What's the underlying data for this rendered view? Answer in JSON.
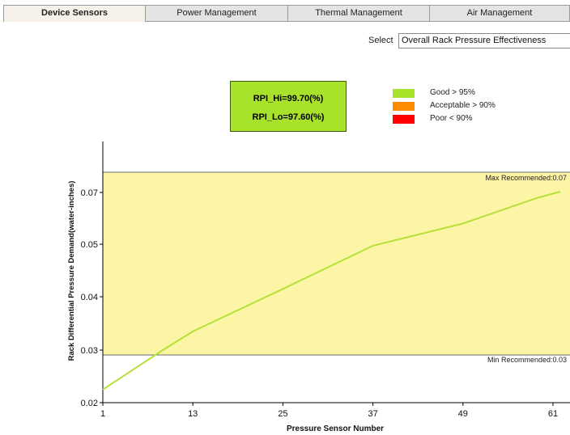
{
  "tabs": [
    {
      "label": "Device Sensors",
      "active": true
    },
    {
      "label": "Power Management",
      "active": false
    },
    {
      "label": "Thermal Management",
      "active": false
    },
    {
      "label": "Air Management",
      "active": false
    }
  ],
  "selector": {
    "label": "Select",
    "value": "Overall Rack Pressure Effectiveness"
  },
  "rpi": {
    "hi": "RPI_Hi=99.70(%)",
    "lo": "RPI_Lo=97.60(%)",
    "color": "#a8e22b"
  },
  "legend": [
    {
      "label": "Good > 95%",
      "color": "#a8e22b"
    },
    {
      "label": "Acceptable > 90%",
      "color": "#ff8c00"
    },
    {
      "label": "Poor < 90%",
      "color": "#ff0000"
    }
  ],
  "chart_data": {
    "type": "line",
    "xlabel": "Pressure Sensor Number",
    "ylabel": "Rack Differential Pressure Demand(water-inches)",
    "x_ticks": [
      "1",
      "13",
      "25",
      "37",
      "49",
      "61"
    ],
    "y_ticks": [
      "0.02",
      "0.03",
      "0.04",
      "0.05",
      "0.07"
    ],
    "band": {
      "min": 0.03,
      "max": 0.07,
      "color": "#fdf5a6"
    },
    "min_label": "Min Recommended:0.03",
    "max_label": "Max Recommended:0.07",
    "series": [
      {
        "color": "#b6e03a",
        "x": [
          1,
          9,
          13,
          25,
          37,
          49,
          59,
          62
        ],
        "y": [
          0.0225,
          0.03,
          0.0335,
          0.0415,
          0.0497,
          0.058,
          0.068,
          0.0703
        ]
      }
    ]
  }
}
